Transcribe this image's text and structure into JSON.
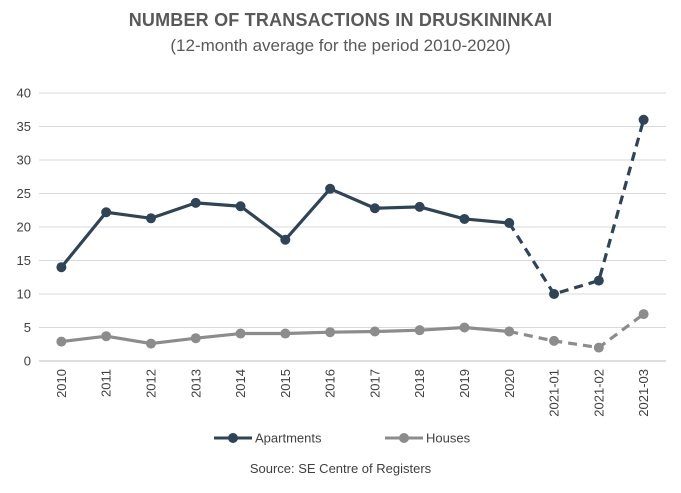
{
  "chart_data": {
    "type": "line",
    "title": "NUMBER OF TRANSACTIONS IN DRUSKININKAI",
    "subtitle": "(12-month average for the period 2010-2020)",
    "categories": [
      "2010",
      "2011",
      "2012",
      "2013",
      "2014",
      "2015",
      "2016",
      "2017",
      "2018",
      "2019",
      "2020",
      "2021-01",
      "2021-02",
      "2021-03"
    ],
    "ylim": [
      0,
      40
    ],
    "yticks": [
      0,
      5,
      10,
      15,
      20,
      25,
      30,
      35,
      40
    ],
    "grid": true,
    "legend_position": "bottom",
    "dashed_from_index": 10,
    "series": [
      {
        "name": "Apartments",
        "color": "#2e4457",
        "values": [
          14,
          22.2,
          21.3,
          23.6,
          23.1,
          18.1,
          25.7,
          22.8,
          23.0,
          21.2,
          20.6,
          10.0,
          12.0,
          36.0
        ]
      },
      {
        "name": "Houses",
        "color": "#8c8c8c",
        "values": [
          2.9,
          3.7,
          2.6,
          3.4,
          4.1,
          4.1,
          4.3,
          4.4,
          4.6,
          5.0,
          4.4,
          3.0,
          2.0,
          7.0
        ]
      }
    ],
    "source": "Source: SE Centre of Registers"
  }
}
